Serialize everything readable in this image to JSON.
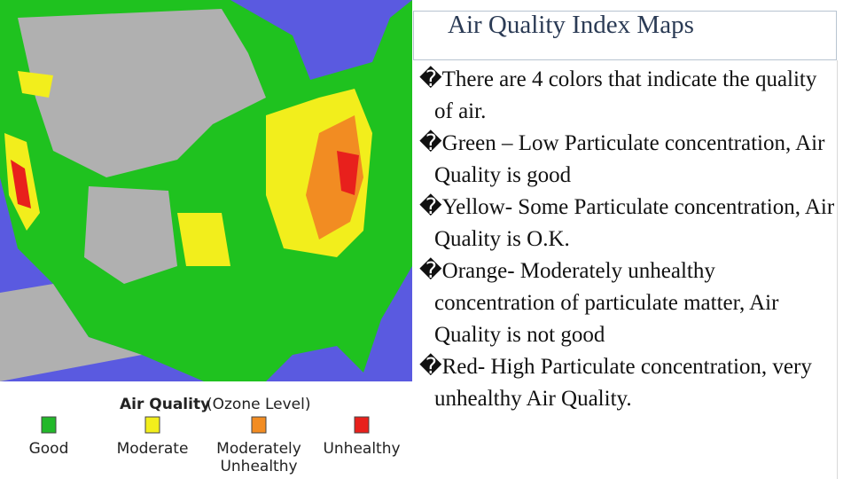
{
  "title": "Air Quality Index Maps",
  "bullets": [
    "�There are 4 colors that indicate the quality of air.",
    "�Green – Low Particulate concentration, Air Quality is good",
    "�Yellow- Some Particulate concentration, Air Quality is O.K.",
    "�Orange- Moderately unhealthy concentration of particulate matter, Air Quality is not good",
    "�Red- High Particulate concentration, very unhealthy Air Quality."
  ],
  "legend": {
    "heading": "Air Quality",
    "subheading": "(Ozone Level)",
    "items": [
      {
        "label": "Good",
        "color": "#22b82a"
      },
      {
        "label": "Moderate",
        "color": "#f2ee1c"
      },
      {
        "label": [
          "Moderately",
          "Unhealthy"
        ],
        "color": "#f28c22"
      },
      {
        "label": "Unhealthy",
        "color": "#e8201c"
      }
    ]
  }
}
